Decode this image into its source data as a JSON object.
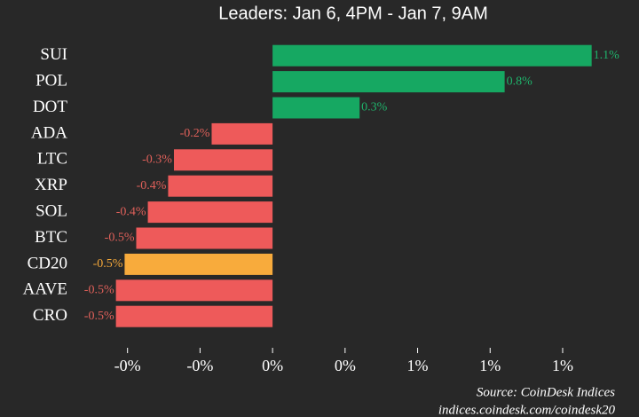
{
  "chart_data": {
    "type": "hbar",
    "subtitle": "Leaders: Jan 6, 4PM - Jan 7, 9AM",
    "categories": [
      "SUI",
      "POL",
      "DOT",
      "ADA",
      "LTC",
      "XRP",
      "SOL",
      "BTC",
      "CD20",
      "AAVE",
      "CRO"
    ],
    "values": [
      1.1,
      0.8,
      0.3,
      -0.21,
      -0.34,
      -0.36,
      -0.43,
      -0.47,
      -0.51,
      -0.54,
      -0.54
    ],
    "value_labels": [
      "1.1%",
      "0.8%",
      "0.3%",
      "-0.2%",
      "-0.3%",
      "-0.4%",
      "-0.4%",
      "-0.5%",
      "-0.5%",
      "-0.5%",
      "-0.5%"
    ],
    "colors": [
      "#16a862",
      "#16a862",
      "#16a862",
      "#ee5a5a",
      "#ee5a5a",
      "#ee5a5a",
      "#ee5a5a",
      "#ee5a5a",
      "#f8ab3c",
      "#ee5a5a",
      "#ee5a5a"
    ],
    "label_colors": [
      "#1fb36b",
      "#1fb36b",
      "#1fb36b",
      "#e0605a",
      "#e0605a",
      "#e0605a",
      "#e0605a",
      "#e0605a",
      "#f5a83a",
      "#e0605a",
      "#e0605a"
    ],
    "xlim": [
      -0.6,
      1.15
    ],
    "xticks": [
      {
        "value": -0.5,
        "label": "-0%"
      },
      {
        "value": -0.25,
        "label": "-0%"
      },
      {
        "value": 0,
        "label": "0%"
      },
      {
        "value": 0.25,
        "label": "0%"
      },
      {
        "value": 0.5,
        "label": "1%"
      },
      {
        "value": 0.75,
        "label": "1%"
      },
      {
        "value": 1.0,
        "label": "1%"
      }
    ],
    "source": "Source: CoinDesk Indices",
    "source_url": "indices.coindesk.com/coindesk20"
  }
}
